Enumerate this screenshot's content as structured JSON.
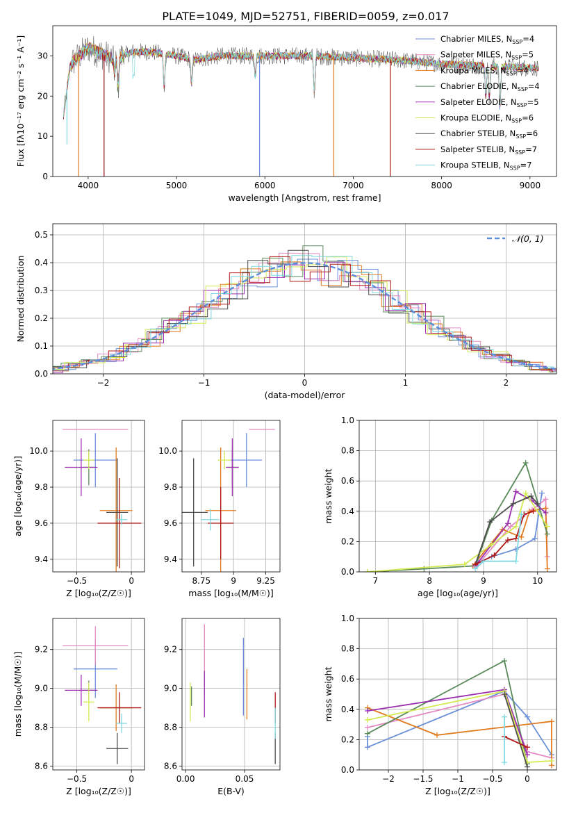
{
  "figure_title": "PLATE=1049, MJD=52751, FIBERID=0059, z=0.017",
  "colors": [
    "#6a8fd8",
    "#e58ac2",
    "#e07b1f",
    "#5a8a5a",
    "#9b2fb0",
    "#d4ea52",
    "#4d4d4d",
    "#b01818",
    "#7fd8e0"
  ],
  "chart_data": [
    {
      "id": "spectrum",
      "type": "line",
      "title": "",
      "xlabel": "wavelength [Angstrom, rest frame]",
      "ylabel": "Flux [fλ10⁻¹⁷ erg cm⁻² s⁻¹ A⁻¹]",
      "xlim": [
        3600,
        9300
      ],
      "ylim": [
        0,
        37.5
      ],
      "xticks": [
        4000,
        5000,
        6000,
        7000,
        8000,
        9000
      ],
      "yticks": [
        0,
        10,
        20,
        30
      ],
      "grid": false,
      "legend_position": "upper-right",
      "legend": [
        {
          "name": "Chabrier MILES, N",
          "sub": "SSP",
          "tail": "=4"
        },
        {
          "name": "Salpeter MILES, N",
          "sub": "SSP",
          "tail": "=5"
        },
        {
          "name": "Kroupa MILES, N",
          "sub": "SSP",
          "tail": "=4"
        },
        {
          "name": "Chabrier ELODIE, N",
          "sub": "SSP",
          "tail": "=4"
        },
        {
          "name": "Salpeter ELODIE, N",
          "sub": "SSP",
          "tail": "=5"
        },
        {
          "name": "Kroupa ELODIE, N",
          "sub": "SSP",
          "tail": "=6"
        },
        {
          "name": "Chabrier STELIB, N",
          "sub": "SSP",
          "tail": "=6"
        },
        {
          "name": "Salpeter STELIB, N",
          "sub": "SSP",
          "tail": "=7"
        },
        {
          "name": "Kroupa STELIB, N",
          "sub": "SSP",
          "tail": "=7"
        }
      ],
      "continuum": [
        [
          3720,
          15
        ],
        [
          3800,
          28
        ],
        [
          3900,
          30
        ],
        [
          4000,
          32
        ],
        [
          4100,
          31
        ],
        [
          4200,
          30
        ],
        [
          4300,
          29
        ],
        [
          4500,
          31
        ],
        [
          4700,
          31
        ],
        [
          5000,
          30
        ],
        [
          5200,
          29
        ],
        [
          5500,
          30
        ],
        [
          6000,
          30
        ],
        [
          6500,
          30
        ],
        [
          7000,
          29.5
        ],
        [
          7500,
          29
        ],
        [
          8000,
          28
        ],
        [
          8500,
          27.5
        ],
        [
          9000,
          27
        ],
        [
          9100,
          27
        ]
      ],
      "spikes_down": [
        [
          3890,
          0,
          2
        ],
        [
          4180,
          0,
          0
        ],
        [
          4180,
          0,
          7
        ],
        [
          5940,
          0,
          0
        ],
        [
          6780,
          0,
          2
        ],
        [
          7420,
          0,
          7
        ],
        [
          3760,
          8,
          8
        ]
      ],
      "absorption": [
        [
          4300,
          26
        ],
        [
          4340,
          22
        ],
        [
          4860,
          22
        ],
        [
          5170,
          23
        ],
        [
          5890,
          25
        ],
        [
          6560,
          21
        ],
        [
          8500,
          20
        ],
        [
          8540,
          20
        ],
        [
          8660,
          17
        ]
      ],
      "noisy_gray_band": [
        3800,
        4400
      ]
    },
    {
      "id": "residual-hist",
      "type": "bar",
      "title": "",
      "xlabel": "(data-model)/error",
      "ylabel": "Normed distribution",
      "xlim": [
        -2.5,
        2.5
      ],
      "ylim": [
        0,
        0.54
      ],
      "xticks": [
        -2,
        -1,
        0,
        1,
        2
      ],
      "yticks": [
        0.0,
        0.1,
        0.2,
        0.3,
        0.4,
        0.5
      ],
      "grid": true,
      "bin_width": 0.2,
      "step_series_count": 9,
      "gaussian_label": "𝒩(0, 1)",
      "gaussian": {
        "mu": 0,
        "sigma": 1,
        "color": "#5b8dd9",
        "dash": true
      },
      "legend_position": "upper-right"
    },
    {
      "id": "age-vs-z",
      "type": "scatter",
      "title": "",
      "xlabel": "Z [log₁₀(Z/Z☉)]",
      "ylabel": "age  [log₁₀(age/yr)]",
      "xlim": [
        -0.72,
        0.12
      ],
      "ylim": [
        9.33,
        10.17
      ],
      "xticks": [
        -0.5,
        0.0
      ],
      "yticks": [
        9.4,
        9.6,
        9.8,
        10.0
      ],
      "grid": true,
      "points": [
        {
          "x": -0.33,
          "y": 9.95,
          "xerr": 0.2,
          "yerr": 0.15,
          "color": "#6a8fd8"
        },
        {
          "x": -0.33,
          "y": 10.12,
          "xerr": 0.3,
          "yerr": 0.0,
          "color": "#e58ac2"
        },
        {
          "x": -0.14,
          "y": 9.67,
          "xerr": 0.15,
          "yerr": 0.35,
          "color": "#e07b1f"
        },
        {
          "x": -0.39,
          "y": 9.91,
          "xerr": 0.05,
          "yerr": 0.1,
          "color": "#5a8a5a"
        },
        {
          "x": -0.46,
          "y": 9.91,
          "xerr": 0.15,
          "yerr": 0.16,
          "color": "#9b2fb0"
        },
        {
          "x": -0.39,
          "y": 9.95,
          "xerr": 0.05,
          "yerr": 0.05,
          "color": "#d4ea52"
        },
        {
          "x": -0.13,
          "y": 9.66,
          "xerr": 0.1,
          "yerr": 0.3,
          "color": "#4d4d4d"
        },
        {
          "x": -0.11,
          "y": 9.6,
          "xerr": 0.2,
          "yerr": 0.25,
          "color": "#b01818"
        },
        {
          "x": -0.09,
          "y": 9.62,
          "xerr": 0.05,
          "yerr": 0.03,
          "color": "#7fd8e0"
        }
      ]
    },
    {
      "id": "age-vs-mass",
      "type": "scatter",
      "title": "",
      "xlabel": "mass [log₁₀(M/M☉)]",
      "ylabel": "",
      "xlim": [
        8.6,
        9.36
      ],
      "ylim": [
        9.33,
        10.17
      ],
      "xticks": [
        8.75,
        9.0,
        9.25
      ],
      "yticks": [
        9.4,
        9.6,
        9.8,
        10.0
      ],
      "grid": true,
      "points": [
        {
          "x": 9.1,
          "y": 9.95,
          "xerr": 0.12,
          "yerr": 0.15,
          "color": "#6a8fd8"
        },
        {
          "x": 9.22,
          "y": 10.12,
          "xerr": 0.1,
          "yerr": 0.0,
          "color": "#e58ac2"
        },
        {
          "x": 8.9,
          "y": 9.67,
          "xerr": 0.12,
          "yerr": 0.35,
          "color": "#e07b1f"
        },
        {
          "x": 8.99,
          "y": 9.91,
          "xerr": 0.05,
          "yerr": 0.1,
          "color": "#5a8a5a"
        },
        {
          "x": 8.99,
          "y": 9.91,
          "xerr": 0.05,
          "yerr": 0.16,
          "color": "#9b2fb0"
        },
        {
          "x": 8.93,
          "y": 9.95,
          "xerr": 0.05,
          "yerr": 0.05,
          "color": "#d4ea52"
        },
        {
          "x": 8.69,
          "y": 9.66,
          "xerr": 0.11,
          "yerr": 0.3,
          "color": "#4d4d4d"
        },
        {
          "x": 8.9,
          "y": 9.6,
          "xerr": 0.1,
          "yerr": 0.2,
          "color": "#b01818"
        },
        {
          "x": 8.82,
          "y": 9.62,
          "xerr": 0.07,
          "yerr": 0.06,
          "color": "#7fd8e0"
        }
      ]
    },
    {
      "id": "massweight-vs-age",
      "type": "line",
      "title": "",
      "xlabel": "age  [log₁₀(age/yr)]",
      "ylabel": "mass weight",
      "xlim": [
        6.7,
        10.35
      ],
      "ylim": [
        0,
        1
      ],
      "xticks": [
        7,
        8,
        9,
        10
      ],
      "yticks": [
        0.0,
        0.2,
        0.4,
        0.6,
        0.8,
        1.0
      ],
      "grid": true,
      "series": [
        {
          "color": "#6a8fd8",
          "points": [
            [
              8.9,
              0.06
            ],
            [
              9.15,
              0.1
            ],
            [
              9.6,
              0.15
            ],
            [
              9.95,
              0.22
            ],
            [
              10.08,
              0.52
            ]
          ]
        },
        {
          "color": "#e58ac2",
          "points": [
            [
              8.85,
              0.03
            ],
            [
              9.5,
              0.3
            ],
            [
              9.9,
              0.41
            ],
            [
              10.15,
              0.48
            ],
            [
              10.18,
              0.1
            ]
          ]
        },
        {
          "color": "#e07b1f",
          "points": [
            [
              8.8,
              0.04
            ],
            [
              9.35,
              0.28
            ],
            [
              9.7,
              0.23
            ],
            [
              9.85,
              0.4
            ],
            [
              10.15,
              0.42
            ],
            [
              10.18,
              0.02
            ]
          ]
        },
        {
          "color": "#5a8a5a",
          "points": [
            [
              6.85,
              0.0
            ],
            [
              7.9,
              0.02
            ],
            [
              8.85,
              0.04
            ],
            [
              9.15,
              0.34
            ],
            [
              9.78,
              0.72
            ],
            [
              10.18,
              0.25
            ]
          ]
        },
        {
          "color": "#9b2fb0",
          "points": [
            [
              8.85,
              0.04
            ],
            [
              9.45,
              0.32
            ],
            [
              9.6,
              0.53
            ],
            [
              9.9,
              0.47
            ],
            [
              10.15,
              0.39
            ]
          ]
        },
        {
          "color": "#d4ea52",
          "points": [
            [
              6.85,
              0.0
            ],
            [
              8.65,
              0.05
            ],
            [
              9.15,
              0.18
            ],
            [
              9.6,
              0.3
            ],
            [
              9.78,
              0.52
            ],
            [
              10.18,
              0.3
            ]
          ]
        },
        {
          "color": "#4d4d4d",
          "points": [
            [
              8.85,
              0.05
            ],
            [
              9.12,
              0.33
            ],
            [
              9.55,
              0.45
            ],
            [
              9.88,
              0.5
            ],
            [
              10.0,
              0.45
            ]
          ]
        },
        {
          "color": "#b01818",
          "points": [
            [
              8.85,
              0.05
            ],
            [
              9.2,
              0.11
            ],
            [
              9.45,
              0.21
            ],
            [
              9.6,
              0.22
            ],
            [
              9.75,
              0.38
            ],
            [
              9.92,
              0.4
            ]
          ]
        },
        {
          "color": "#7fd8e0",
          "points": [
            [
              8.85,
              0.02
            ],
            [
              9.0,
              0.07
            ],
            [
              9.6,
              0.07
            ],
            [
              9.7,
              0.38
            ]
          ]
        }
      ]
    },
    {
      "id": "mass-vs-z",
      "type": "scatter",
      "title": "",
      "xlabel": "Z [log₁₀(Z/Z☉)]",
      "ylabel": "mass [log₁₀(M/M☉)]",
      "xlim": [
        -0.72,
        0.12
      ],
      "ylim": [
        8.58,
        9.36
      ],
      "xticks": [
        -0.5,
        0.0
      ],
      "yticks": [
        8.6,
        8.8,
        9.0,
        9.2
      ],
      "grid": true,
      "points": [
        {
          "x": -0.33,
          "y": 9.1,
          "xerr": 0.2,
          "yerr": 0.15,
          "color": "#6a8fd8"
        },
        {
          "x": -0.33,
          "y": 9.22,
          "xerr": 0.3,
          "yerr": 0.1,
          "color": "#e58ac2"
        },
        {
          "x": -0.14,
          "y": 8.9,
          "xerr": 0.15,
          "yerr": 0.12,
          "color": "#e07b1f"
        },
        {
          "x": -0.39,
          "y": 8.99,
          "xerr": 0.05,
          "yerr": 0.05,
          "color": "#5a8a5a"
        },
        {
          "x": -0.46,
          "y": 8.99,
          "xerr": 0.15,
          "yerr": 0.08,
          "color": "#9b2fb0"
        },
        {
          "x": -0.39,
          "y": 8.93,
          "xerr": 0.05,
          "yerr": 0.1,
          "color": "#d4ea52"
        },
        {
          "x": -0.13,
          "y": 8.69,
          "xerr": 0.1,
          "yerr": 0.08,
          "color": "#4d4d4d"
        },
        {
          "x": -0.11,
          "y": 8.9,
          "xerr": 0.2,
          "yerr": 0.08,
          "color": "#b01818"
        },
        {
          "x": -0.09,
          "y": 8.82,
          "xerr": 0.05,
          "yerr": 0.05,
          "color": "#7fd8e0"
        }
      ]
    },
    {
      "id": "mass-vs-ebv",
      "type": "scatter",
      "title": "",
      "xlabel": "E(B-V)",
      "ylabel": "",
      "xlim": [
        -0.003,
        0.08
      ],
      "ylim": [
        8.58,
        9.36
      ],
      "xticks": [
        0.0,
        0.05
      ],
      "xtick_labels": [
        "0.00",
        "0.05"
      ],
      "yticks": [
        8.6,
        8.8,
        9.0,
        9.2
      ],
      "grid": true,
      "points": [
        {
          "x": 0.049,
          "y": 9.06,
          "xerr": 0,
          "yerr": 0.2,
          "color": "#6a8fd8"
        },
        {
          "x": 0.016,
          "y": 9.15,
          "xerr": 0,
          "yerr": 0.18,
          "color": "#e58ac2"
        },
        {
          "x": 0.052,
          "y": 8.97,
          "xerr": 0,
          "yerr": 0.13,
          "color": "#e07b1f"
        },
        {
          "x": 0.005,
          "y": 8.96,
          "xerr": 0,
          "yerr": 0.05,
          "color": "#5a8a5a"
        },
        {
          "x": 0.016,
          "y": 8.97,
          "xerr": 0,
          "yerr": 0.12,
          "color": "#9b2fb0"
        },
        {
          "x": 0.004,
          "y": 8.93,
          "xerr": 0,
          "yerr": 0.1,
          "color": "#d4ea52"
        },
        {
          "x": 0.076,
          "y": 8.69,
          "xerr": 0,
          "yerr": 0.08,
          "color": "#4d4d4d"
        },
        {
          "x": 0.076,
          "y": 8.9,
          "xerr": 0,
          "yerr": 0.08,
          "color": "#b01818"
        },
        {
          "x": 0.076,
          "y": 8.82,
          "xerr": 0,
          "yerr": 0.08,
          "color": "#7fd8e0"
        }
      ]
    },
    {
      "id": "massweight-vs-z",
      "type": "line",
      "title": "",
      "xlabel": "Z [log₁₀(Z/Z☉)]",
      "ylabel": "mass weight",
      "xlim": [
        -2.42,
        0.42
      ],
      "ylim": [
        0,
        1
      ],
      "xticks": [
        -2.0,
        -1.5,
        -1.0,
        -0.5,
        0.0
      ],
      "yticks": [
        0.0,
        0.2,
        0.4,
        0.6,
        0.8,
        1.0
      ],
      "grid": true,
      "series": [
        {
          "color": "#6a8fd8",
          "points": [
            [
              -2.3,
              0.22
            ],
            [
              -2.3,
              0.15
            ],
            [
              -0.33,
              0.52
            ],
            [
              0.0,
              0.35
            ],
            [
              0.35,
              0.1
            ]
          ]
        },
        {
          "color": "#e58ac2",
          "points": [
            [
              -2.3,
              0.28
            ],
            [
              -0.33,
              0.5
            ],
            [
              0.0,
              0.12
            ],
            [
              0.35,
              0.08
            ]
          ]
        },
        {
          "color": "#e07b1f",
          "points": [
            [
              -2.3,
              0.41
            ],
            [
              -1.3,
              0.23
            ],
            [
              0.35,
              0.32
            ],
            [
              0.35,
              0.03
            ]
          ]
        },
        {
          "color": "#5a8a5a",
          "points": [
            [
              -2.3,
              0.24
            ],
            [
              -0.33,
              0.72
            ],
            [
              0.0,
              0.04
            ]
          ]
        },
        {
          "color": "#9b2fb0",
          "points": [
            [
              -2.3,
              0.39
            ],
            [
              -0.33,
              0.53
            ],
            [
              0.0,
              0.1
            ]
          ]
        },
        {
          "color": "#d4ea52",
          "points": [
            [
              -2.3,
              0.33
            ],
            [
              -0.33,
              0.52
            ],
            [
              0.0,
              0.05
            ],
            [
              0.35,
              0.06
            ]
          ]
        },
        {
          "color": "#4d4d4d",
          "points": [
            [
              -0.33,
              0.5
            ],
            [
              0.0,
              0.02
            ]
          ]
        },
        {
          "color": "#b01818",
          "points": [
            [
              -0.33,
              0.22
            ],
            [
              0.0,
              0.15
            ]
          ]
        },
        {
          "color": "#7fd8e0",
          "points": [
            [
              -0.33,
              0.35
            ],
            [
              -0.33,
              0.05
            ]
          ]
        }
      ]
    }
  ]
}
